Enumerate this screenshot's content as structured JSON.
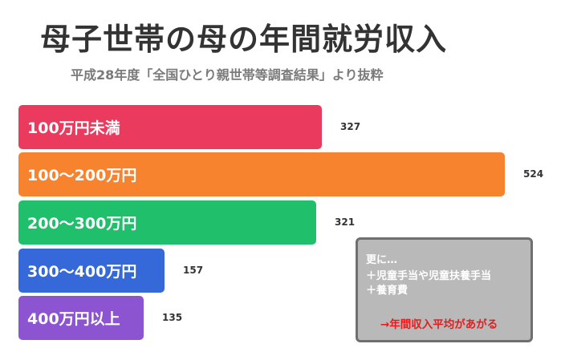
{
  "chart_data": {
    "type": "bar",
    "orientation": "horizontal",
    "title": "母子世帯の母の年間就労収入",
    "subtitle": "平成28年度「全国ひとり親世帯等調査結果」より抜粋",
    "categories": [
      "100万円未満",
      "100〜200万円",
      "200〜300万円",
      "300〜400万円",
      "400万円以上"
    ],
    "values": [
      327,
      524,
      321,
      157,
      135
    ],
    "colors": [
      "#ea3a5e",
      "#f7832f",
      "#1fbf6b",
      "#3569d9",
      "#8c54d1"
    ],
    "xlim": [
      0,
      524
    ],
    "grid": false,
    "legend": "none"
  },
  "note": {
    "line1": "更に…",
    "line2": "＋児童手当や児童扶養手当",
    "line3": "＋養育費",
    "result": "→年間収入平均があがる"
  }
}
